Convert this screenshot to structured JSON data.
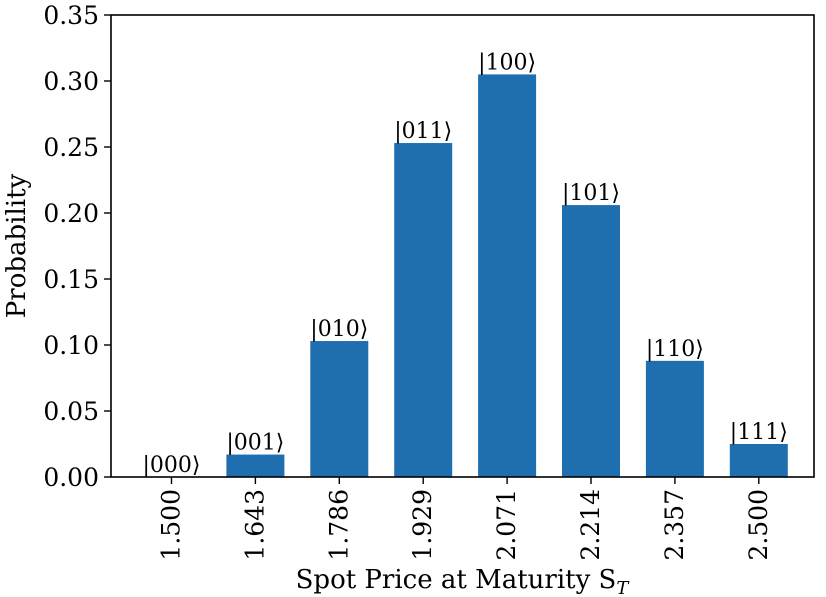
{
  "chart_data": {
    "type": "bar",
    "categories": [
      "1.500",
      "1.643",
      "1.786",
      "1.929",
      "2.071",
      "2.214",
      "2.357",
      "2.500"
    ],
    "values": [
      0.0,
      0.017,
      0.103,
      0.253,
      0.305,
      0.206,
      0.088,
      0.025
    ],
    "bar_labels": [
      "|000⟩",
      "|001⟩",
      "|010⟩",
      "|011⟩",
      "|100⟩",
      "|101⟩",
      "|110⟩",
      "|111⟩"
    ],
    "xlabel": "Spot Price at Maturity S",
    "xlabel_subscript": "T",
    "ylabel": "Probability",
    "ylim": [
      0,
      0.35
    ],
    "yticks": [
      "0.00",
      "0.05",
      "0.10",
      "0.15",
      "0.20",
      "0.25",
      "0.30",
      "0.35"
    ],
    "grid": false,
    "bar_color": "#1f6fb0"
  }
}
